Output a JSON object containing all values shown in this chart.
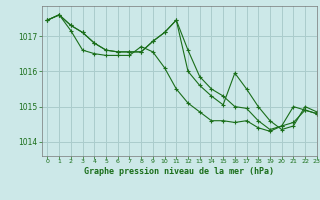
{
  "background_color": "#cce8e8",
  "grid_color": "#aacccc",
  "line_color": "#1a6e1a",
  "title": "Graphe pression niveau de la mer (hPa)",
  "xlim": [
    -0.5,
    23
  ],
  "ylim": [
    1013.6,
    1017.85
  ],
  "yticks": [
    1014,
    1015,
    1016,
    1017
  ],
  "xticks": [
    0,
    1,
    2,
    3,
    4,
    5,
    6,
    7,
    8,
    9,
    10,
    11,
    12,
    13,
    14,
    15,
    16,
    17,
    18,
    19,
    20,
    21,
    22,
    23
  ],
  "series": [
    [
      1017.45,
      1017.6,
      1017.3,
      1017.1,
      1016.8,
      1016.6,
      1016.55,
      1016.55,
      1016.55,
      1016.85,
      1017.1,
      1017.45,
      1016.6,
      1015.85,
      1015.5,
      1015.3,
      1015.0,
      1014.95,
      1014.6,
      1014.35,
      1014.45,
      1015.0,
      1014.9,
      1014.8
    ],
    [
      1017.45,
      1017.6,
      1017.3,
      1017.1,
      1016.8,
      1016.6,
      1016.55,
      1016.55,
      1016.55,
      1016.85,
      1017.1,
      1017.45,
      1016.0,
      1015.6,
      1015.3,
      1015.05,
      1015.95,
      1015.5,
      1015.0,
      1014.6,
      1014.35,
      1014.45,
      1015.0,
      1014.85
    ],
    [
      1017.45,
      1017.6,
      1017.15,
      1016.6,
      1016.5,
      1016.45,
      1016.45,
      1016.45,
      1016.7,
      1016.55,
      1016.1,
      1015.5,
      1015.1,
      1014.85,
      1014.6,
      1014.6,
      1014.55,
      1014.6,
      1014.4,
      1014.3,
      1014.45,
      1014.55,
      1014.9,
      1014.8
    ]
  ]
}
